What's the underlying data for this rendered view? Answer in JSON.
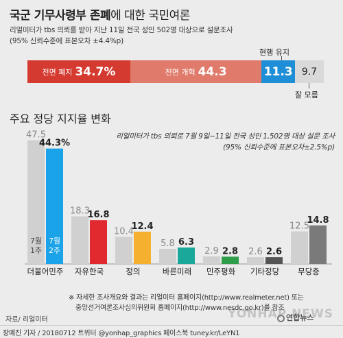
{
  "header": {
    "title_bold": "국군 기무사령부 존폐",
    "title_light": "에 대한 국민여론",
    "source_line1": "리얼미터가 tbs 의뢰를 받아 지난 11일 전국 성인 502명 대상으로 설문조사",
    "source_line2": "(95% 신뢰수준에 표본오차 ±4.4%p)"
  },
  "poll": {
    "segments": [
      {
        "label": "전면 폐지",
        "value": 34.7,
        "display": "34.7%",
        "color": "#d43a2f"
      },
      {
        "label": "전면 개혁",
        "value": 44.3,
        "display": "44.3",
        "color": "#e07a6a"
      },
      {
        "label": "현행 유지",
        "value": 11.3,
        "display": "11.3",
        "color": "#1e8fd6"
      },
      {
        "label": "잘 모름",
        "value": 9.7,
        "display": "9.7",
        "color": "#d9d9d9"
      }
    ]
  },
  "party": {
    "subtitle": "주요 정당 지지율 변화",
    "source_line1": "리얼미터가 tbs 의뢰로 7월 9일~11일 전국 성인 1,502명 대상 설문 조사",
    "source_line2": "(95% 신뢰수준에 표본오차±2.5%p)",
    "week1_label": "7월\n1주",
    "week2_label": "7월\n2주"
  },
  "chart_data": {
    "type": "bar",
    "categories": [
      "더불어민주",
      "자유한국",
      "정의",
      "바른미래",
      "민주평화",
      "기타정당",
      "무당층"
    ],
    "series": [
      {
        "name": "7월 1주",
        "values": [
          47.5,
          18.3,
          10.4,
          5.8,
          2.9,
          2.6,
          12.5
        ]
      },
      {
        "name": "7월 2주",
        "values": [
          44.3,
          16.8,
          12.4,
          6.3,
          2.8,
          2.6,
          14.8
        ]
      }
    ],
    "week2_colors": [
      "#1aa3e8",
      "#e02a2f",
      "#f5b030",
      "#1aa89a",
      "#2e9e4a",
      "#555555",
      "#7a7a7a"
    ],
    "week1_color": "#d0d0d0",
    "highlight_labels": [
      "44.3%"
    ],
    "ylim": [
      0,
      50
    ],
    "grid": false
  },
  "notes": {
    "line1": "※ 자세한 조사개요와 결과는 리얼미터 홈페이지(http://www.realmeter.net) 또는",
    "line2": "중앙선거여론조사심의위원회 홈페이지(http://www.nesdc.go.kr)를 참조",
    "source": "자료/ 리얼미터",
    "footer": "장예진 기자 / 20180712 트위터 @yonhap_graphics  페이스북 tuney.kr/LeYN1",
    "logo": "연합뉴스",
    "watermark": "YONHAP NEWS"
  }
}
